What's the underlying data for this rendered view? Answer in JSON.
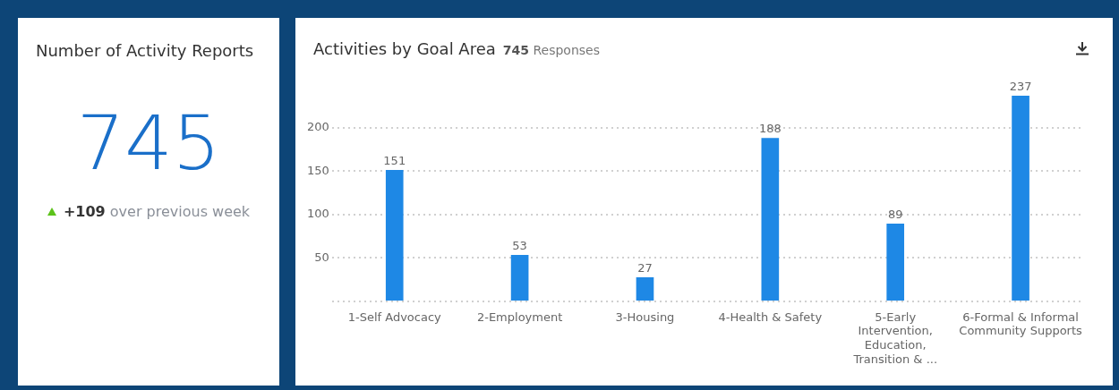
{
  "chart_data": [
    {
      "type": "other",
      "title": "Number of Activity Reports",
      "annotations": [
        "745",
        "+109 over previous week"
      ]
    },
    {
      "type": "bar",
      "title": "Activities by Goal Area",
      "subtitle": "745 Responses",
      "categories": [
        "1-Self Advocacy",
        "2-Employment",
        "3-Housing",
        "4-Health & Safety",
        "5-Early Intervention, Education, Transition & ...",
        "6-Formal & Informal Community Supports"
      ],
      "values": [
        151,
        53,
        27,
        188,
        89,
        237
      ],
      "color": "#1e88e5",
      "ylim": [
        0,
        237
      ],
      "yticks": [
        {
          "value": 0,
          "label": null
        },
        50,
        100,
        150,
        200
      ],
      "grid": "y",
      "data_labels": true
    }
  ]
}
